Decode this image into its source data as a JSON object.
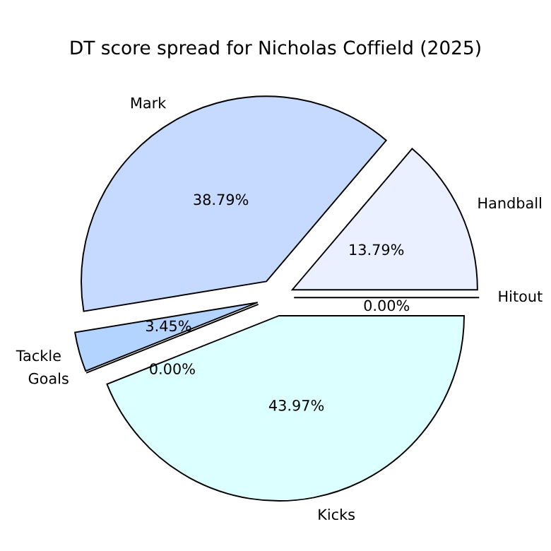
{
  "chart_data": {
    "type": "pie",
    "title": "DT score spread for Nicholas Coffield (2025)",
    "categories": [
      "Hitout",
      "Handball",
      "Mark",
      "Tackle",
      "Goals",
      "Kicks"
    ],
    "values": [
      0.0,
      13.79,
      38.79,
      3.45,
      0.0,
      43.97
    ],
    "colors": [
      "#f0f4ff",
      "#eaf0ff",
      "#c6d9ff",
      "#b3d4ff",
      "#a8c8f0",
      "#dcffff"
    ],
    "value_labels": [
      "0.00%",
      "13.79%",
      "38.79%",
      "3.45%",
      "0.00%",
      "43.97%"
    ],
    "legend": false
  }
}
